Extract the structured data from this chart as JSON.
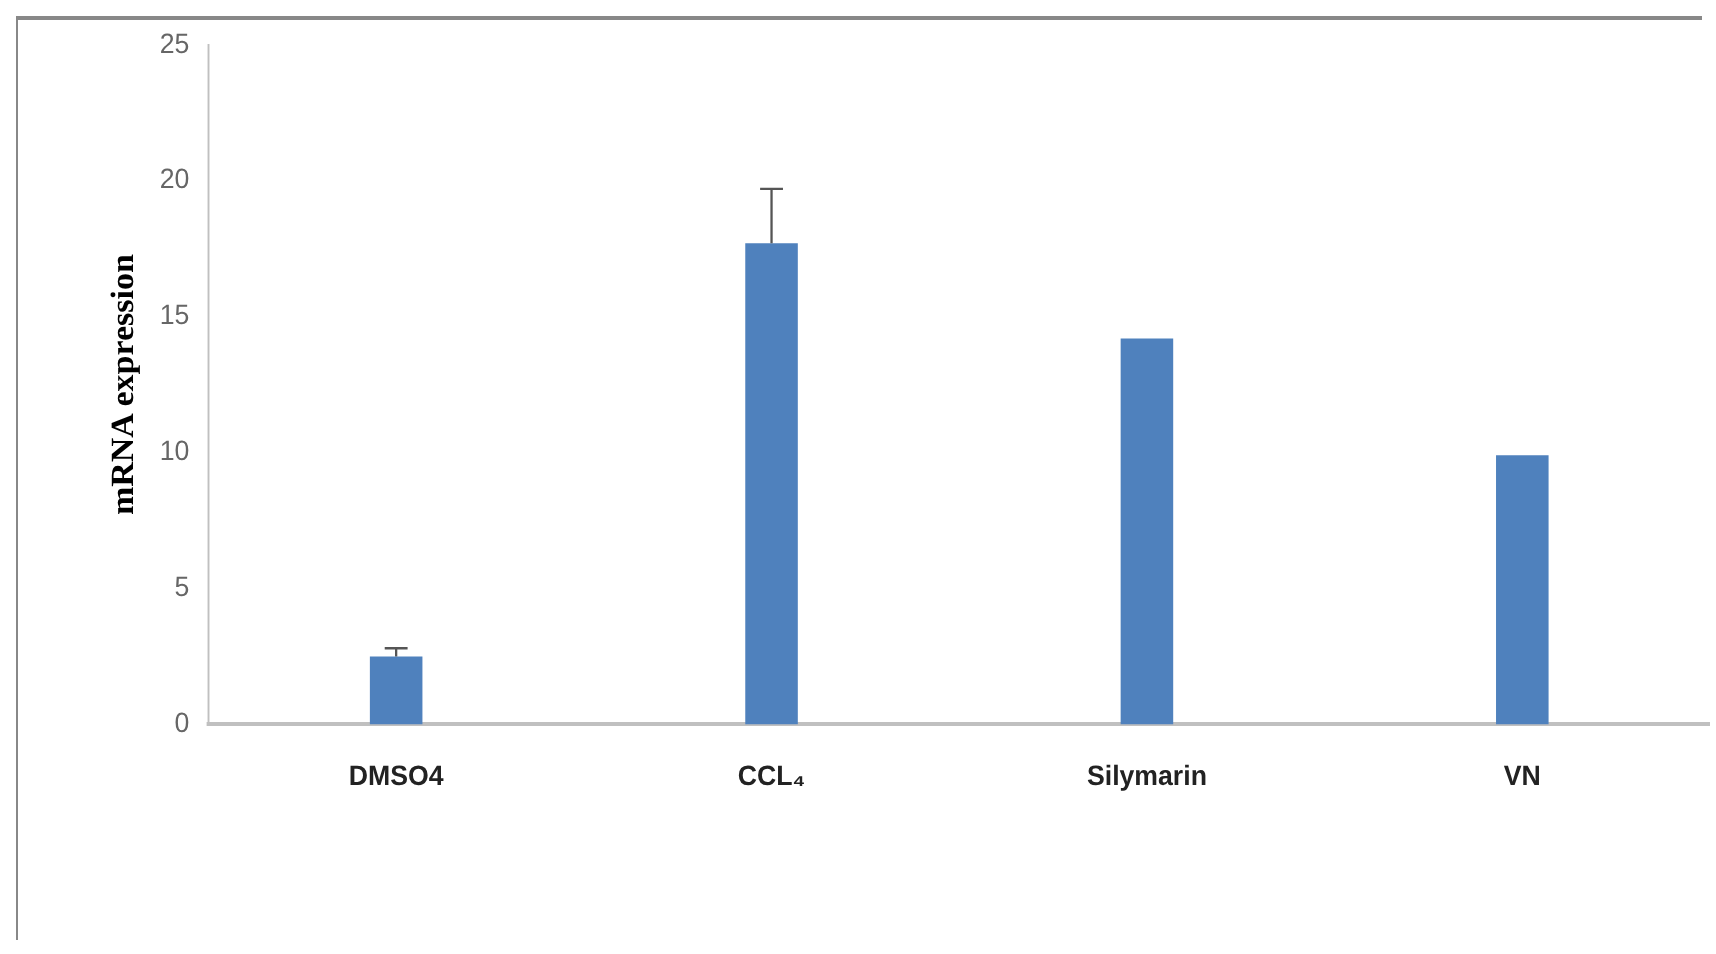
{
  "chart_data": {
    "type": "bar",
    "ylabel": "mRNA expression",
    "categories": [
      "DMSO4",
      "CCL₄",
      "Silymarin",
      "VN"
    ],
    "values": [
      2.5,
      17.7,
      14.2,
      9.9
    ],
    "errors": [
      [
        2.5,
        2.8
      ],
      [
        17.7,
        19.7
      ],
      null,
      null
    ],
    "color": "#4f81bd",
    "ylim": [
      0,
      25
    ],
    "yticks": [
      0,
      5,
      10,
      15,
      20,
      25
    ],
    "grid": false,
    "legend": false
  }
}
